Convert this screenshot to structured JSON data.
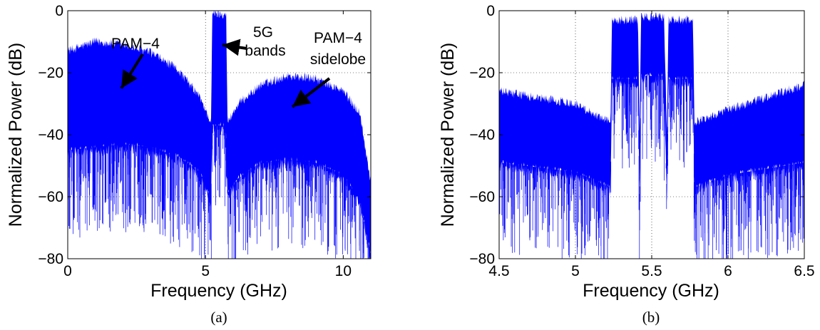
{
  "chart_data": [
    {
      "type": "line",
      "caption": "(a)",
      "xlabel": "Frequency (GHz)",
      "ylabel": "Normalized Power (dB)",
      "xlim": [
        0,
        11
      ],
      "ylim": [
        -80,
        0
      ],
      "xticks": [
        0,
        5,
        10
      ],
      "xtick_labels": [
        "0",
        "5",
        "10"
      ],
      "yticks": [
        -80,
        -60,
        -40,
        -20,
        0
      ],
      "ytick_labels": [
        "−80",
        "−60",
        "−40",
        "−20",
        "0"
      ],
      "grid": true,
      "color": "#0000ff",
      "series": [
        {
          "name": "",
          "description_points": [
            {
              "x": 0.0,
              "upper": -13,
              "lower": -46
            },
            {
              "x": 1.0,
              "upper": -10,
              "lower": -45
            },
            {
              "x": 2.0,
              "upper": -11,
              "lower": -44
            },
            {
              "x": 3.0,
              "upper": -13.5,
              "lower": -45
            },
            {
              "x": 4.0,
              "upper": -19,
              "lower": -48
            },
            {
              "x": 4.8,
              "upper": -28,
              "lower": -53
            },
            {
              "x": 5.2,
              "upper": -36,
              "lower": -62
            },
            {
              "x": 5.25,
              "upper": -1,
              "lower": -38
            },
            {
              "x": 5.75,
              "upper": -1,
              "lower": -38
            },
            {
              "x": 5.8,
              "upper": -36,
              "lower": -60
            },
            {
              "x": 6.2,
              "upper": -30,
              "lower": -55
            },
            {
              "x": 7.0,
              "upper": -24,
              "lower": -50
            },
            {
              "x": 8.0,
              "upper": -21,
              "lower": -49
            },
            {
              "x": 9.0,
              "upper": -22,
              "lower": -50
            },
            {
              "x": 10.0,
              "upper": -26,
              "lower": -54
            },
            {
              "x": 10.6,
              "upper": -33,
              "lower": -62
            },
            {
              "x": 11.0,
              "upper": -55,
              "lower": -80
            }
          ]
        }
      ],
      "annotations": [
        {
          "lines": [
            "PAM−4"
          ]
        },
        {
          "lines": [
            "5G",
            "bands"
          ]
        },
        {
          "lines": [
            "PAM−4",
            "sidelobe"
          ]
        }
      ]
    },
    {
      "type": "line",
      "caption": "(b)",
      "xlabel": "Frequency (GHz)",
      "ylabel": "Normalized Power (dB)",
      "xlim": [
        4.5,
        6.5
      ],
      "ylim": [
        -80,
        0
      ],
      "xticks": [
        4.5,
        5,
        5.5,
        6,
        6.5
      ],
      "xtick_labels": [
        "4.5",
        "5",
        "5.5",
        "6",
        "6.5"
      ],
      "yticks": [
        -80,
        -60,
        -40,
        -20,
        0
      ],
      "ytick_labels": [
        "−80",
        "−60",
        "−40",
        "−20",
        "0"
      ],
      "grid": true,
      "color": "#0000ff",
      "series": [
        {
          "name": "",
          "description_points": [
            {
              "x": 4.5,
              "upper": -26,
              "lower": -50
            },
            {
              "x": 5.0,
              "upper": -30,
              "lower": -53
            },
            {
              "x": 5.23,
              "upper": -36,
              "lower": -58
            },
            {
              "x": 5.24,
              "upper": -3,
              "lower": -23
            },
            {
              "x": 5.41,
              "upper": -3,
              "lower": -23
            },
            {
              "x": 5.42,
              "upper": -40,
              "lower": -62
            },
            {
              "x": 5.43,
              "upper": -2,
              "lower": -22
            },
            {
              "x": 5.58,
              "upper": -2,
              "lower": -22
            },
            {
              "x": 5.6,
              "upper": -40,
              "lower": -63
            },
            {
              "x": 5.61,
              "upper": -3,
              "lower": -23
            },
            {
              "x": 5.77,
              "upper": -3,
              "lower": -23
            },
            {
              "x": 5.78,
              "upper": -36,
              "lower": -58
            },
            {
              "x": 6.0,
              "upper": -32,
              "lower": -54
            },
            {
              "x": 6.5,
              "upper": -24,
              "lower": -50
            }
          ]
        }
      ]
    }
  ]
}
